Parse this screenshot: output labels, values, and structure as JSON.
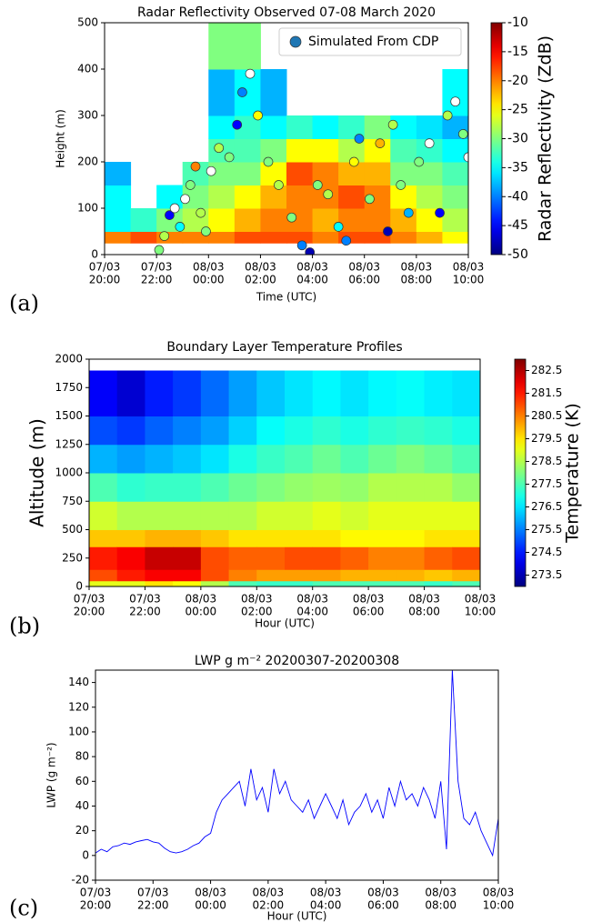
{
  "chart_data": [
    {
      "type": "heatmap",
      "panel_label": "(a)",
      "title": "Radar Reflectivity Observed 07-08 March 2020",
      "xlabel": "Time (UTC)",
      "ylabel": "Height (m)",
      "xlim": [
        20,
        34
      ],
      "ylim": [
        0,
        500
      ],
      "xticks": [
        {
          "value": 20,
          "label": [
            "07/03",
            "20:00"
          ]
        },
        {
          "value": 22,
          "label": [
            "07/03",
            "22:00"
          ]
        },
        {
          "value": 24,
          "label": [
            "08/03",
            "00:00"
          ]
        },
        {
          "value": 26,
          "label": [
            "08/03",
            "02:00"
          ]
        },
        {
          "value": 28,
          "label": [
            "08/03",
            "04:00"
          ]
        },
        {
          "value": 30,
          "label": [
            "08/03",
            "06:00"
          ]
        },
        {
          "value": 32,
          "label": [
            "08/03",
            "08:00"
          ]
        },
        {
          "value": 34,
          "label": [
            "08/03",
            "10:00"
          ]
        }
      ],
      "yticks": [
        0,
        100,
        200,
        300,
        400,
        500
      ],
      "x_edges": [
        20,
        21,
        22,
        23,
        24,
        25,
        26,
        27,
        28,
        29,
        30,
        31,
        32,
        33,
        34
      ],
      "y_edges": [
        0,
        25,
        50,
        100,
        150,
        200,
        250,
        300,
        400,
        500
      ],
      "z": [
        [
          null,
          -20,
          -35,
          -35,
          -38,
          null,
          null,
          null,
          null
        ],
        [
          null,
          -18,
          -33,
          null,
          null,
          null,
          null,
          null,
          null
        ],
        [
          null,
          -20,
          -30,
          -35,
          null,
          null,
          null,
          null,
          null
        ],
        [
          null,
          -20,
          -28,
          -30,
          -32,
          null,
          null,
          null,
          null
        ],
        [
          null,
          -20,
          -25,
          -28,
          -30,
          -32,
          -35,
          -38,
          -30
        ],
        [
          null,
          -18,
          -22,
          -25,
          -30,
          -32,
          -33,
          -35,
          -30
        ],
        [
          null,
          -18,
          -20,
          -22,
          -25,
          -30,
          -35,
          -38,
          null
        ],
        [
          null,
          -18,
          -20,
          -20,
          -18,
          -25,
          -33,
          null,
          null
        ],
        [
          null,
          -20,
          -22,
          -20,
          -20,
          -25,
          -35,
          null,
          null
        ],
        [
          null,
          -18,
          -20,
          -18,
          -22,
          -28,
          -33,
          null,
          null
        ],
        [
          null,
          -18,
          -20,
          -20,
          -22,
          -25,
          -30,
          null,
          null
        ],
        [
          null,
          -20,
          -22,
          -25,
          -30,
          -32,
          -35,
          null,
          null
        ],
        [
          null,
          -22,
          -25,
          -28,
          -30,
          -33,
          -36,
          null,
          null
        ],
        [
          null,
          -25,
          -28,
          -30,
          -32,
          -35,
          -38,
          -35,
          null
        ]
      ],
      "colorbar": {
        "label": "Radar Reflectivity (ZdB)",
        "lim": [
          -50,
          -10
        ],
        "ticks": [
          -50,
          -45,
          -40,
          -35,
          -30,
          -25,
          -20,
          -15,
          -10
        ],
        "colormap": "jet"
      },
      "scatter": {
        "name": "Simulated From CDP",
        "color": "#1f77b4",
        "x": [
          22.1,
          22.3,
          22.5,
          22.7,
          22.9,
          23.1,
          23.3,
          23.5,
          23.7,
          23.9,
          24.1,
          24.4,
          24.8,
          25.1,
          25.3,
          25.6,
          25.9,
          26.3,
          26.7,
          27.2,
          27.6,
          27.9,
          28.2,
          28.6,
          29.0,
          29.3,
          29.6,
          29.8,
          30.2,
          30.6,
          30.9,
          31.1,
          31.4,
          31.7,
          32.1,
          32.5,
          32.9,
          33.2,
          33.5,
          33.8,
          34.0
        ],
        "y": [
          10,
          40,
          85,
          100,
          60,
          120,
          150,
          190,
          90,
          50,
          180,
          230,
          210,
          280,
          350,
          390,
          300,
          200,
          150,
          80,
          20,
          5,
          150,
          130,
          60,
          30,
          200,
          250,
          120,
          240,
          50,
          280,
          150,
          90,
          200,
          240,
          90,
          300,
          330,
          260,
          210
        ],
        "values": [
          -30,
          -28,
          -45,
          null,
          -35,
          null,
          -30,
          -20,
          -28,
          -30,
          null,
          -28,
          -30,
          -45,
          -40,
          null,
          -25,
          -30,
          -28,
          -30,
          -40,
          -48,
          -30,
          -28,
          -35,
          -40,
          -25,
          -40,
          -30,
          -22,
          -48,
          -28,
          -30,
          -38,
          -30,
          null,
          -45,
          -28,
          null,
          -30,
          null
        ]
      },
      "legend": "upper right"
    },
    {
      "type": "contour",
      "panel_label": "(b)",
      "title": "Boundary Layer Temperature Profiles",
      "xlabel": "Hour (UTC)",
      "ylabel": "Altitude (m)",
      "xlim": [
        20,
        34
      ],
      "ylim": [
        0,
        2000
      ],
      "xticks": [
        {
          "value": 20,
          "label": [
            "07/03",
            "20:00"
          ]
        },
        {
          "value": 22,
          "label": [
            "07/03",
            "22:00"
          ]
        },
        {
          "value": 24,
          "label": [
            "08/03",
            "00:00"
          ]
        },
        {
          "value": 26,
          "label": [
            "08/03",
            "02:00"
          ]
        },
        {
          "value": 28,
          "label": [
            "08/03",
            "04:00"
          ]
        },
        {
          "value": 30,
          "label": [
            "08/03",
            "06:00"
          ]
        },
        {
          "value": 32,
          "label": [
            "08/03",
            "08:00"
          ]
        },
        {
          "value": 34,
          "label": [
            "08/03",
            "10:00"
          ]
        }
      ],
      "yticks": [
        0,
        250,
        500,
        750,
        1000,
        1250,
        1500,
        1750,
        2000
      ],
      "x_edges": [
        20,
        21,
        22,
        23,
        24,
        25,
        26,
        27,
        28,
        29,
        30,
        31,
        32,
        33,
        34
      ],
      "y_edges": [
        0,
        50,
        150,
        350,
        500,
        750,
        1000,
        1250,
        1500,
        1900
      ],
      "z": [
        [
          279,
          281,
          281.5,
          279.8,
          278.8,
          277.5,
          276,
          275,
          274.2
        ],
        [
          279,
          281.5,
          281.8,
          279.8,
          278.5,
          277.2,
          275.8,
          274.8,
          273.8
        ],
        [
          279.5,
          281.8,
          282.3,
          280,
          278.5,
          277.3,
          276,
          275.2,
          274.5
        ],
        [
          279.2,
          281.8,
          282.3,
          280,
          278.5,
          277.3,
          276.2,
          275.5,
          274.8
        ],
        [
          278.5,
          281,
          281,
          279.8,
          278.5,
          277.5,
          276.5,
          275.8,
          275.3
        ],
        [
          277.5,
          280.5,
          280.8,
          279.5,
          278.5,
          277.8,
          277,
          276.3,
          275.8
        ],
        [
          277.3,
          280.2,
          280.8,
          279.5,
          278.8,
          278,
          277.3,
          276.8,
          276.2
        ],
        [
          277.3,
          280.2,
          281,
          279.5,
          278.8,
          278.2,
          277.5,
          277,
          276.5
        ],
        [
          277.5,
          280.2,
          281,
          279.5,
          279,
          278.3,
          277.8,
          277.2,
          276.7
        ],
        [
          277.5,
          280,
          280.8,
          279.3,
          278.8,
          278.2,
          277.5,
          277,
          276.5
        ],
        [
          277.5,
          280,
          280.5,
          279.3,
          279,
          278.5,
          277.8,
          277.2,
          276.7
        ],
        [
          277.5,
          280,
          280.5,
          279.3,
          279,
          278.5,
          278,
          277.3,
          276.8
        ],
        [
          277.3,
          279.8,
          280.8,
          279.5,
          279,
          278.5,
          277.8,
          277.2,
          276.6
        ],
        [
          277.5,
          280,
          281,
          279.5,
          279,
          278.2,
          277.5,
          277,
          276.5
        ]
      ],
      "colorbar": {
        "label": "Temperature (K)",
        "lim": [
          273,
          283
        ],
        "ticks": [
          273.5,
          274.5,
          275.5,
          276.5,
          277.5,
          278.5,
          279.5,
          280.5,
          281.5,
          282.5
        ],
        "colormap": "jet"
      }
    },
    {
      "type": "line",
      "panel_label": "(c)",
      "title": "LWP g m⁻²   20200307-20200308",
      "xlabel": "Hour (UTC)",
      "ylabel": "LWP (g m⁻²)",
      "xlim": [
        20,
        34
      ],
      "ylim": [
        -20,
        150
      ],
      "xticks": [
        {
          "value": 20,
          "label": [
            "07/03",
            "20:00"
          ]
        },
        {
          "value": 22,
          "label": [
            "07/03",
            "22:00"
          ]
        },
        {
          "value": 24,
          "label": [
            "08/03",
            "00:00"
          ]
        },
        {
          "value": 26,
          "label": [
            "08/03",
            "02:00"
          ]
        },
        {
          "value": 28,
          "label": [
            "08/03",
            "04:00"
          ]
        },
        {
          "value": 30,
          "label": [
            "08/03",
            "06:00"
          ]
        },
        {
          "value": 32,
          "label": [
            "08/03",
            "08:00"
          ]
        },
        {
          "value": 34,
          "label": [
            "08/03",
            "10:00"
          ]
        }
      ],
      "yticks": [
        -20,
        0,
        20,
        40,
        60,
        80,
        100,
        120,
        140
      ],
      "color": "#0000ff",
      "x": [
        20.0,
        20.2,
        20.4,
        20.6,
        20.8,
        21.0,
        21.2,
        21.4,
        21.6,
        21.8,
        22.0,
        22.2,
        22.4,
        22.6,
        22.8,
        23.0,
        23.2,
        23.4,
        23.6,
        23.8,
        24.0,
        24.2,
        24.4,
        24.6,
        24.8,
        25.0,
        25.2,
        25.4,
        25.6,
        25.8,
        26.0,
        26.2,
        26.4,
        26.6,
        26.8,
        27.0,
        27.2,
        27.4,
        27.6,
        27.8,
        28.0,
        28.2,
        28.4,
        28.6,
        28.8,
        29.0,
        29.2,
        29.4,
        29.6,
        29.8,
        30.0,
        30.2,
        30.4,
        30.6,
        30.8,
        31.0,
        31.2,
        31.4,
        31.6,
        31.8,
        32.0,
        32.2,
        32.4,
        32.6,
        32.8,
        33.0,
        33.2,
        33.4,
        33.6,
        33.8,
        34.0
      ],
      "values": [
        2,
        5,
        3,
        7,
        8,
        10,
        9,
        11,
        12,
        13,
        11,
        10,
        6,
        3,
        2,
        3,
        5,
        8,
        10,
        15,
        18,
        35,
        45,
        50,
        55,
        60,
        40,
        70,
        45,
        55,
        35,
        70,
        50,
        60,
        45,
        40,
        35,
        45,
        30,
        40,
        50,
        40,
        30,
        45,
        25,
        35,
        40,
        50,
        35,
        45,
        30,
        55,
        40,
        60,
        45,
        50,
        40,
        55,
        45,
        30,
        60,
        5,
        150,
        60,
        30,
        25,
        35,
        20,
        10,
        0,
        30
      ]
    }
  ]
}
